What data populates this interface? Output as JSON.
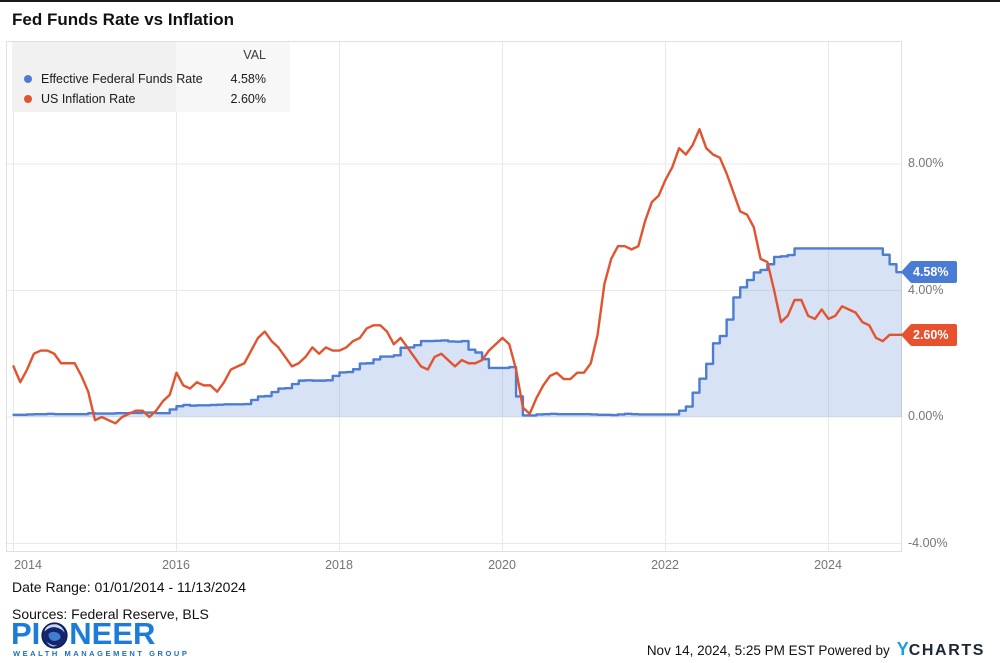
{
  "title": "Fed Funds Rate vs Inflation",
  "legend": {
    "val_header": "VAL",
    "series": [
      {
        "label": "Effective Federal Funds Rate",
        "value": "4.58%",
        "color": "#4d7cd2"
      },
      {
        "label": "US Inflation Rate",
        "value": "2.60%",
        "color": "#e2532f"
      }
    ]
  },
  "y_axis": {
    "labels": [
      "8.00%",
      "4.00%",
      "0.00%",
      "-4.00%"
    ],
    "values": [
      8,
      4,
      0,
      -4
    ]
  },
  "x_axis": {
    "labels": [
      "2014",
      "2016",
      "2018",
      "2020",
      "2022",
      "2024"
    ]
  },
  "badges": [
    {
      "text": "4.58%",
      "color": "#4a7cd6",
      "value": 4.58
    },
    {
      "text": "2.60%",
      "color": "#e8512e",
      "value": 2.6
    }
  ],
  "footer": {
    "date_range": "Date Range: 01/01/2014 - 11/13/2024",
    "sources": "Sources: Federal Reserve, BLS",
    "logo_pre": "PI",
    "logo_post": "NEER",
    "logo_subtitle": "WEALTH MANAGEMENT GROUP",
    "timestamp": "Nov 14, 2024, 5:25 PM EST ",
    "powered_by": "Powered by",
    "ycharts_y": "Y",
    "ycharts_rest": "CHARTS"
  },
  "chart_data": {
    "type": "line",
    "title": "Fed Funds Rate vs Inflation",
    "x_start": "2014-01",
    "x_end": "2024-11",
    "frequency": "monthly",
    "xticks": [
      2014,
      2016,
      2018,
      2020,
      2022,
      2024
    ],
    "yticks": [
      8,
      4,
      0,
      -4
    ],
    "ylim": [
      -4.3,
      11.9
    ],
    "grid": true,
    "legend_position": "top-left",
    "ylabel": "",
    "xlabel": "",
    "series": [
      {
        "name": "Effective Federal Funds Rate",
        "color": "#4d7cd2",
        "style": "step-area",
        "latest": "4.58%",
        "values": [
          0.07,
          0.07,
          0.08,
          0.09,
          0.09,
          0.1,
          0.09,
          0.09,
          0.09,
          0.09,
          0.09,
          0.12,
          0.11,
          0.11,
          0.11,
          0.12,
          0.12,
          0.13,
          0.13,
          0.14,
          0.14,
          0.12,
          0.12,
          0.24,
          0.34,
          0.38,
          0.36,
          0.37,
          0.37,
          0.38,
          0.39,
          0.4,
          0.4,
          0.4,
          0.41,
          0.54,
          0.65,
          0.66,
          0.79,
          0.9,
          0.91,
          1.04,
          1.15,
          1.16,
          1.15,
          1.15,
          1.16,
          1.3,
          1.41,
          1.42,
          1.51,
          1.69,
          1.7,
          1.82,
          1.91,
          1.91,
          1.95,
          2.19,
          2.2,
          2.27,
          2.4,
          2.4,
          2.41,
          2.42,
          2.39,
          2.38,
          2.4,
          2.13,
          2.04,
          1.83,
          1.55,
          1.55,
          1.55,
          1.58,
          0.65,
          0.05,
          0.05,
          0.08,
          0.09,
          0.1,
          0.09,
          0.09,
          0.09,
          0.09,
          0.09,
          0.08,
          0.07,
          0.07,
          0.06,
          0.08,
          0.1,
          0.09,
          0.08,
          0.08,
          0.08,
          0.08,
          0.08,
          0.08,
          0.2,
          0.33,
          0.77,
          1.21,
          1.68,
          2.33,
          2.56,
          3.08,
          3.78,
          4.1,
          4.33,
          4.57,
          4.65,
          4.83,
          5.06,
          5.08,
          5.12,
          5.33,
          5.33,
          5.33,
          5.33,
          5.33,
          5.33,
          5.33,
          5.33,
          5.33,
          5.33,
          5.33,
          5.33,
          5.33,
          5.13,
          4.83,
          4.58
        ]
      },
      {
        "name": "US Inflation Rate",
        "color": "#e2532f",
        "style": "line",
        "latest": "2.60%",
        "values": [
          1.6,
          1.1,
          1.5,
          2.0,
          2.1,
          2.1,
          2.0,
          1.7,
          1.7,
          1.7,
          1.3,
          0.8,
          -0.1,
          0.0,
          -0.1,
          -0.2,
          0.0,
          0.1,
          0.2,
          0.2,
          0.0,
          0.2,
          0.5,
          0.7,
          1.4,
          1.0,
          0.9,
          1.1,
          1.0,
          1.0,
          0.8,
          1.1,
          1.5,
          1.6,
          1.7,
          2.1,
          2.5,
          2.7,
          2.4,
          2.2,
          1.9,
          1.6,
          1.7,
          1.9,
          2.2,
          2.0,
          2.2,
          2.1,
          2.1,
          2.2,
          2.4,
          2.5,
          2.8,
          2.9,
          2.9,
          2.7,
          2.3,
          2.5,
          2.2,
          1.9,
          1.6,
          1.5,
          1.9,
          2.0,
          1.8,
          1.6,
          1.8,
          1.7,
          1.7,
          1.8,
          2.1,
          2.3,
          2.5,
          2.3,
          1.5,
          0.3,
          0.1,
          0.6,
          1.0,
          1.3,
          1.4,
          1.2,
          1.2,
          1.4,
          1.4,
          1.7,
          2.6,
          4.2,
          5.0,
          5.4,
          5.4,
          5.3,
          5.4,
          6.2,
          6.8,
          7.0,
          7.5,
          7.9,
          8.5,
          8.3,
          8.6,
          9.1,
          8.5,
          8.3,
          8.2,
          7.7,
          7.1,
          6.5,
          6.4,
          6.0,
          5.0,
          4.9,
          4.0,
          3.0,
          3.2,
          3.7,
          3.7,
          3.2,
          3.1,
          3.4,
          3.1,
          3.2,
          3.5,
          3.4,
          3.3,
          3.0,
          2.9,
          2.5,
          2.4,
          2.6,
          2.6
        ]
      }
    ]
  }
}
